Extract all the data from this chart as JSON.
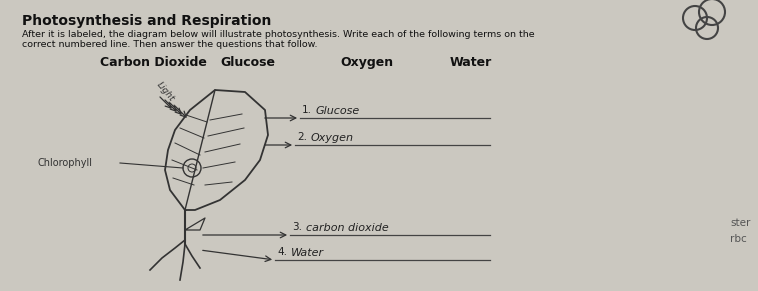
{
  "bg_color": "#cbc8c0",
  "paper_color": "#e8e5de",
  "title": "Photosynthesis and Respiration",
  "subtitle1": "After it is labeled, the diagram below will illustrate photosynthesis. Write each of the following terms on the",
  "subtitle2": "correct numbered line. Then answer the questions that follow.",
  "terms": [
    "Carbon Dioxide",
    "Glucose",
    "Oxygen",
    "Water"
  ],
  "label_light": "Light",
  "label_chlorophyll": "Chlorophyll",
  "answers": [
    "Glucose",
    "Oxygen",
    "carbon dioxide",
    "Water"
  ],
  "side_text1": "ster",
  "side_text2": "rbc",
  "title_fontsize": 10,
  "subtitle_fontsize": 6.8,
  "terms_fontsize": 9,
  "answer_fontsize": 8
}
